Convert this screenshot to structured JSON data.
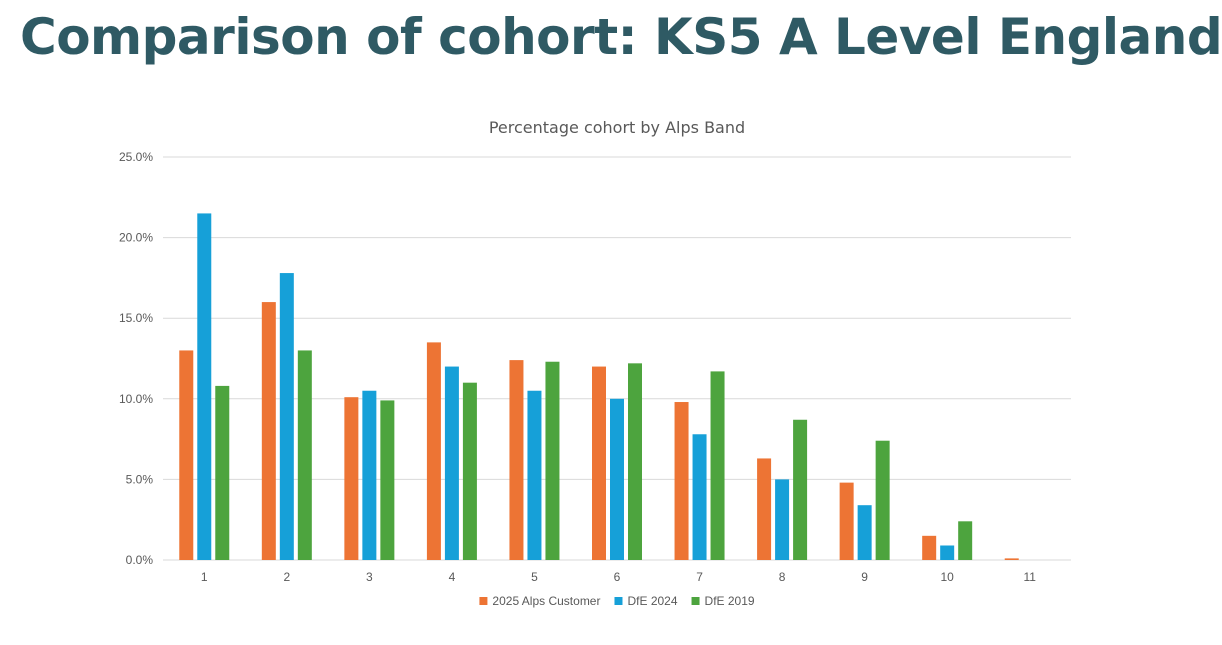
{
  "slide": {
    "title": "Comparison of cohort: KS5 A Level England"
  },
  "colors": {
    "title": "#2f5a64",
    "chart_title": "#595959",
    "axis_text": "#595959",
    "gridline": "#d9d9d9",
    "series_2025": "#ed7434",
    "series_2024": "#16a0d8",
    "series_2019": "#4da43e"
  },
  "chart_data": {
    "type": "bar",
    "title": "Percentage cohort by Alps Band",
    "xlabel": "",
    "ylabel": "",
    "categories": [
      "1",
      "2",
      "3",
      "4",
      "5",
      "6",
      "7",
      "8",
      "9",
      "10",
      "11"
    ],
    "ylim": [
      0,
      25
    ],
    "yticks": [
      0,
      5,
      10,
      15,
      20,
      25
    ],
    "ytick_labels": [
      "0.0%",
      "5.0%",
      "10.0%",
      "15.0%",
      "20.0%",
      "25.0%"
    ],
    "grid": true,
    "legend_position": "bottom",
    "series": [
      {
        "name": "2025 Alps Customer",
        "color": "#ed7434",
        "values": [
          13.0,
          16.0,
          10.1,
          13.5,
          12.4,
          12.0,
          9.8,
          6.3,
          4.8,
          1.5,
          0.1
        ]
      },
      {
        "name": "DfE 2024",
        "color": "#16a0d8",
        "values": [
          21.5,
          17.8,
          10.5,
          12.0,
          10.5,
          10.0,
          7.8,
          5.0,
          3.4,
          0.9,
          0
        ]
      },
      {
        "name": "DfE 2019",
        "color": "#4da43e",
        "values": [
          10.8,
          13.0,
          9.9,
          11.0,
          12.3,
          12.2,
          11.7,
          8.7,
          7.4,
          2.4,
          0
        ]
      }
    ]
  }
}
